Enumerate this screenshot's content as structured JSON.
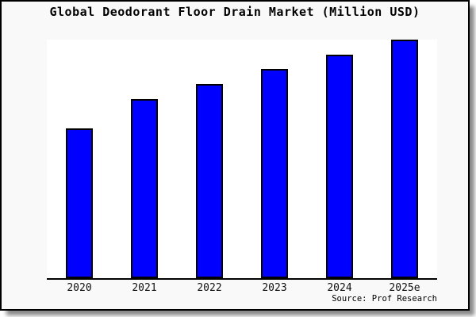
{
  "chart_data": {
    "type": "bar",
    "title": "Global Deodorant Floor Drain Market (Million USD)",
    "categories": [
      "2020",
      "2021",
      "2022",
      "2023",
      "2024",
      "2025e"
    ],
    "values": [
      62.8,
      75.1,
      81.4,
      87.7,
      93.7,
      100
    ],
    "xlabel": "",
    "ylabel": "",
    "ylim": [
      0,
      100
    ],
    "grid": false,
    "legend_position": "none",
    "note": "y-axis has no tick labels; values are relative bar heights (max bar = 100)"
  },
  "source": {
    "label": "Source: Prof Research"
  },
  "colors": {
    "bar_fill": "#0000ff",
    "bar_border": "#000000",
    "card_background": "#f9f9f9",
    "plot_background": "#ffffff",
    "axis_line": "#000000",
    "title_text": "#000000"
  }
}
